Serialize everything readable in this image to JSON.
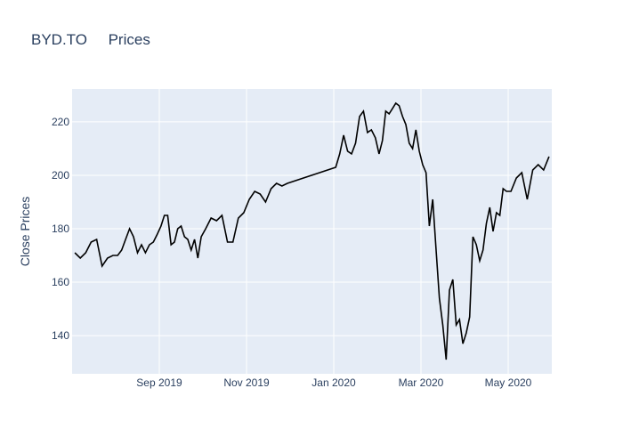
{
  "chart_data": {
    "type": "line",
    "title": "BYD.TO     Prices",
    "y_label": "Close Prices",
    "x": [
      "2019-07",
      "2019-07",
      "2019-07",
      "2019-07",
      "2019-07",
      "2019-07",
      "2019-07",
      "2019-07",
      "2019-08",
      "2019-08",
      "2019-08",
      "2019-08",
      "2019-08",
      "2019-08",
      "2019-08",
      "2019-08",
      "2019-08",
      "2019-08",
      "2019-08",
      "2019-09",
      "2019-09",
      "2019-09",
      "2019-09",
      "2019-09",
      "2019-09",
      "2019-09",
      "2019-09",
      "2019-09",
      "2019-09",
      "2019-09",
      "2019-09",
      "2019-09",
      "2019-10",
      "2019-10",
      "2019-10",
      "2019-10",
      "2019-10",
      "2019-10",
      "2019-10",
      "2019-10",
      "2019-11",
      "2019-11",
      "2019-11",
      "2019-11",
      "2019-11",
      "2019-11",
      "2019-11",
      "2019-11",
      "2020-01",
      "2020-01",
      "2020-01",
      "2020-01",
      "2020-01",
      "2020-01",
      "2020-01",
      "2020-01",
      "2020-01",
      "2020-01",
      "2020-01",
      "2020-02",
      "2020-02",
      "2020-02",
      "2020-02",
      "2020-02",
      "2020-02",
      "2020-02",
      "2020-02",
      "2020-02",
      "2020-02",
      "2020-02",
      "2020-02",
      "2020-02",
      "2020-03",
      "2020-03",
      "2020-03",
      "2020-03",
      "2020-03",
      "2020-03",
      "2020-03",
      "2020-03",
      "2020-03",
      "2020-03",
      "2020-03",
      "2020-03",
      "2020-03",
      "2020-04",
      "2020-04",
      "2020-04",
      "2020-04",
      "2020-04",
      "2020-04",
      "2020-04",
      "2020-04",
      "2020-04",
      "2020-04",
      "2020-04",
      "2020-04",
      "2020-04",
      "2020-05",
      "2020-05",
      "2020-05",
      "2020-05",
      "2020-05",
      "2020-05",
      "2020-05",
      "2020-05"
    ],
    "series": [
      {
        "name": "Close",
        "color": "#000000",
        "values": [
          171,
          169,
          171,
          175,
          176,
          166,
          169,
          170,
          170,
          172,
          176,
          180,
          177,
          171,
          174,
          171,
          174,
          175,
          178,
          181,
          185,
          185,
          174,
          175,
          180,
          181,
          177,
          176,
          172,
          176,
          169,
          177,
          180,
          184,
          183,
          185,
          175,
          175,
          184,
          186,
          191,
          194,
          193,
          190,
          195,
          197,
          196,
          197,
          203,
          208,
          215,
          209,
          208,
          212,
          222,
          224,
          216,
          217,
          214,
          208,
          213,
          224,
          223,
          225,
          227,
          226,
          222,
          219,
          212,
          210,
          217,
          209,
          204,
          201,
          181,
          191,
          172,
          154,
          144,
          131,
          157,
          161,
          144,
          146,
          137,
          141,
          147,
          177,
          174,
          168,
          172,
          182,
          188,
          179,
          186,
          185,
          195,
          194,
          194,
          199,
          201,
          191,
          202,
          204,
          202,
          207
        ]
      }
    ],
    "xlim": [
      "2019-07",
      "2020-05"
    ],
    "xticks": [
      {
        "value": "2019-09",
        "label": "Sep 2019"
      },
      {
        "value": "2019-11",
        "label": "Nov 2019"
      },
      {
        "value": "2020-01",
        "label": "Jan 2020"
      },
      {
        "value": "2020-03",
        "label": "Mar 2020"
      },
      {
        "value": "2020-05",
        "label": "May 2020"
      }
    ],
    "ylim": [
      125.7,
      232.3
    ],
    "yticks": [
      140,
      160,
      180,
      200,
      220
    ],
    "grid": true
  }
}
